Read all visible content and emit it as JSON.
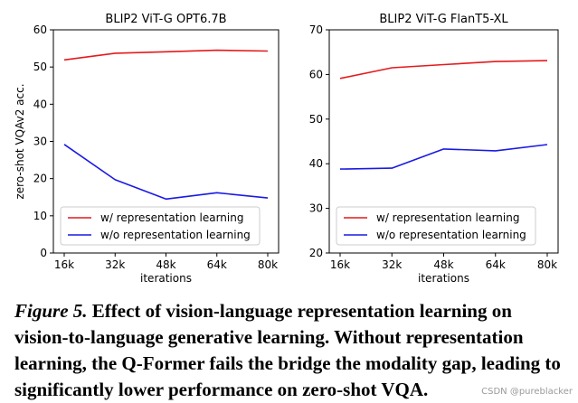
{
  "chart_data": [
    {
      "type": "line",
      "title": "BLIP2 ViT-G OPT6.7B",
      "xlabel": "iterations",
      "ylabel": "zero-shot VQAv2 acc.",
      "categories": [
        "16k",
        "32k",
        "48k",
        "64k",
        "80k"
      ],
      "ylim": [
        0,
        60
      ],
      "yticks": [
        "0",
        "10",
        "20",
        "30",
        "40",
        "50",
        "60"
      ],
      "legend_position": "lower-left",
      "series": [
        {
          "name": "w/ representation learning",
          "color": "#e41a1c",
          "values": [
            51.9,
            53.7,
            54.1,
            54.5,
            54.3
          ]
        },
        {
          "name": "w/o representation learning",
          "color": "#1a1ae4",
          "values": [
            29.2,
            19.7,
            14.5,
            16.2,
            14.8
          ]
        }
      ]
    },
    {
      "type": "line",
      "title": "BLIP2 ViT-G FlanT5-XL",
      "xlabel": "iterations",
      "ylabel": "",
      "categories": [
        "16k",
        "32k",
        "48k",
        "64k",
        "80k"
      ],
      "ylim": [
        20,
        70
      ],
      "yticks": [
        "20",
        "30",
        "40",
        "50",
        "60",
        "70"
      ],
      "legend_position": "lower-left",
      "series": [
        {
          "name": "w/ representation learning",
          "color": "#e41a1c",
          "values": [
            59.1,
            61.5,
            62.2,
            62.9,
            63.1
          ]
        },
        {
          "name": "w/o representation learning",
          "color": "#1a1ae4",
          "values": [
            38.8,
            39.0,
            43.3,
            42.9,
            44.3
          ]
        }
      ]
    }
  ],
  "caption": {
    "lead": "Figure 5.",
    "text": " Effect of vision-language representation learning on vision-to-language generative learning.  Without representation learning, the Q-Former fails the bridge the modality gap, leading to significantly lower performance on zero-shot VQA."
  },
  "watermark": "CSDN @pureblacker"
}
